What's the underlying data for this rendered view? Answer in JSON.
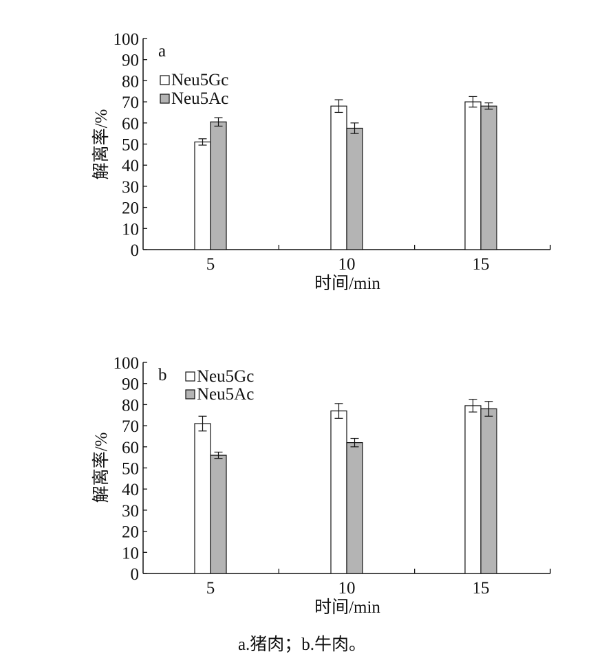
{
  "caption": "a.猪肉；b.牛肉。",
  "colors": {
    "Neu5Gc": "#ffffff",
    "Neu5Ac": "#b4b4b4",
    "stroke": "#111111"
  },
  "chart_data": [
    {
      "panel": "a",
      "type": "bar",
      "xlabel": "时间/min",
      "ylabel": "解离率/%",
      "ylim": [
        0,
        100
      ],
      "yticks": [
        "0",
        "10",
        "20",
        "30",
        "40",
        "50",
        "60",
        "70",
        "80",
        "90",
        "100"
      ],
      "categories": [
        "5",
        "10",
        "15"
      ],
      "legend_position": "top-left",
      "series": [
        {
          "name": "Neu5Gc",
          "values": [
            51,
            68,
            70
          ],
          "errors": [
            1.5,
            3,
            2.5
          ]
        },
        {
          "name": "Neu5Ac",
          "values": [
            60.5,
            57.5,
            68
          ],
          "errors": [
            2,
            2.5,
            1.5
          ]
        }
      ]
    },
    {
      "panel": "b",
      "type": "bar",
      "xlabel": "时间/min",
      "ylabel": "解离率/%",
      "ylim": [
        0,
        100
      ],
      "yticks": [
        "0",
        "10",
        "20",
        "30",
        "40",
        "50",
        "60",
        "70",
        "80",
        "90",
        "100"
      ],
      "categories": [
        "5",
        "10",
        "15"
      ],
      "legend_position": "top-left",
      "series": [
        {
          "name": "Neu5Gc",
          "values": [
            71,
            77,
            79.5
          ],
          "errors": [
            3.5,
            3.5,
            3
          ]
        },
        {
          "name": "Neu5Ac",
          "values": [
            56,
            62,
            78
          ],
          "errors": [
            1.5,
            2,
            3.5
          ]
        }
      ]
    }
  ]
}
